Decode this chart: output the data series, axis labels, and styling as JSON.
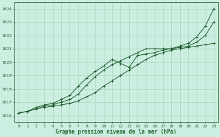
{
  "xlabel": "Graphe pression niveau de la mer (hPa)",
  "xlim": [
    -0.5,
    23.5
  ],
  "ylim": [
    1015.5,
    1024.5
  ],
  "yticks": [
    1016,
    1017,
    1018,
    1019,
    1020,
    1021,
    1022,
    1023,
    1024
  ],
  "xticks": [
    0,
    1,
    2,
    3,
    4,
    5,
    6,
    7,
    8,
    9,
    10,
    11,
    12,
    13,
    14,
    15,
    16,
    17,
    18,
    19,
    20,
    21,
    22,
    23
  ],
  "bg_color": "#cceee0",
  "grid_color": "#aad4c0",
  "line_color": "#1a5c2a",
  "line1": [
    1016.2,
    1016.3,
    1016.5,
    1016.6,
    1016.7,
    1016.8,
    1016.9,
    1017.1,
    1017.4,
    1017.7,
    1018.2,
    1018.6,
    1019.0,
    1019.4,
    1019.8,
    1020.2,
    1020.5,
    1020.7,
    1020.9,
    1021.0,
    1021.1,
    1021.2,
    1021.3,
    1021.4
  ],
  "line2": [
    1016.2,
    1016.3,
    1016.5,
    1016.7,
    1016.8,
    1017.0,
    1017.2,
    1017.6,
    1018.3,
    1018.9,
    1019.4,
    1019.8,
    1020.1,
    1020.4,
    1020.7,
    1021.0,
    1021.0,
    1021.0,
    1021.0,
    1021.1,
    1021.2,
    1021.5,
    1022.0,
    1023.0
  ],
  "line3": [
    1016.2,
    1016.3,
    1016.6,
    1016.8,
    1016.9,
    1017.2,
    1017.5,
    1018.2,
    1018.8,
    1019.3,
    1019.7,
    1020.2,
    1019.9,
    1019.6,
    1020.5,
    1020.6,
    1020.7,
    1020.9,
    1021.0,
    1021.2,
    1021.4,
    1021.9,
    1022.7,
    1024.0
  ]
}
